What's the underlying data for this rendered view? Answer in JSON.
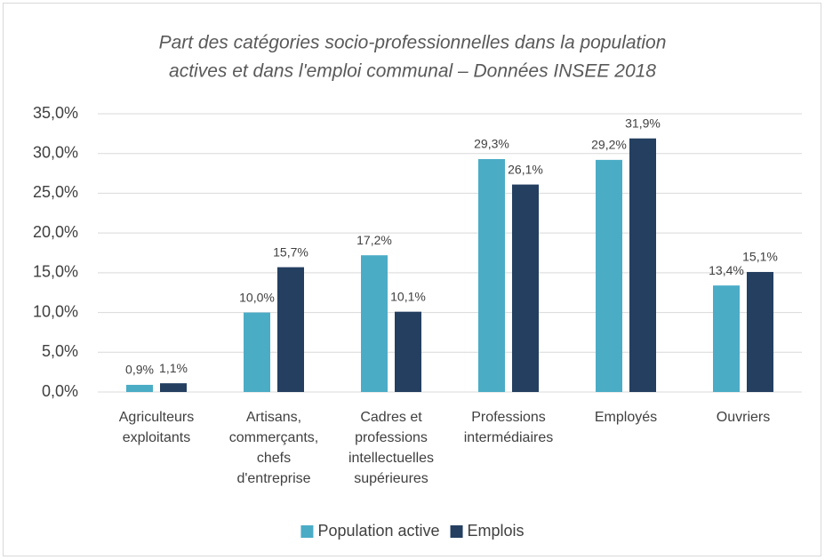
{
  "chart_data": {
    "type": "bar",
    "title": [
      "Part des catégories socio-professionnelles dans la population",
      "actives et dans l'emploi communal – Données INSEE 2018"
    ],
    "categories": [
      "Agriculteurs exploitants",
      "Artisans, commerçants, chefs d'entreprise",
      "Cadres et professions intellectuelles supérieures",
      "Professions intermédiaires",
      "Employés",
      "Ouvriers"
    ],
    "series": [
      {
        "name": "Population active",
        "color": "#4bacc6",
        "values": [
          0.9,
          10.0,
          17.2,
          29.3,
          29.2,
          13.4
        ],
        "value_labels": [
          "0,9%",
          "10,0%",
          "17,2%",
          "29,3%",
          "29,2%",
          "13,4%"
        ]
      },
      {
        "name": "Emplois",
        "color": "#243f60",
        "values": [
          1.1,
          15.7,
          10.1,
          26.1,
          31.9,
          15.1
        ],
        "value_labels": [
          "1,1%",
          "15,7%",
          "10,1%",
          "26,1%",
          "31,9%",
          "15,1%"
        ]
      }
    ],
    "ylim": [
      0,
      35
    ],
    "yticks": [
      {
        "value": 0,
        "label": "0,0%"
      },
      {
        "value": 5,
        "label": "5,0%"
      },
      {
        "value": 10,
        "label": "10,0%"
      },
      {
        "value": 15,
        "label": "15,0%"
      },
      {
        "value": 20,
        "label": "20,0%"
      },
      {
        "value": 25,
        "label": "25,0%"
      },
      {
        "value": 30,
        "label": "30,0%"
      },
      {
        "value": 35,
        "label": "35,0%"
      }
    ],
    "grid": true,
    "legend": "bottom"
  }
}
